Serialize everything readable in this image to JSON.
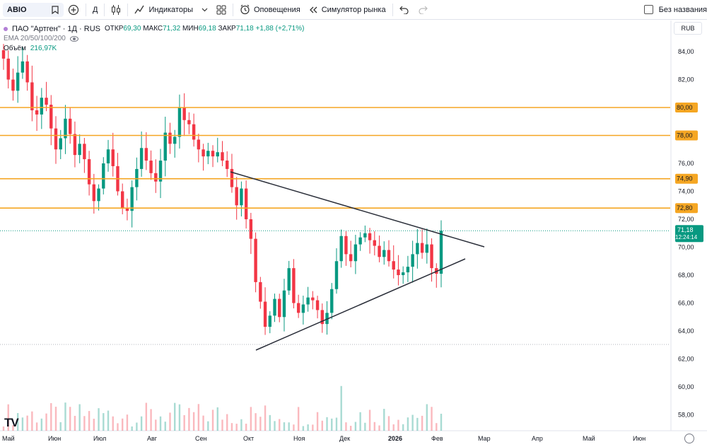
{
  "toolbar": {
    "symbol": "ABIO",
    "interval": "Д",
    "indicators": "Индикаторы",
    "alerts": "Оповещения",
    "replay": "Симулятор рынка",
    "layout_name": "Без названия"
  },
  "legend": {
    "title": "ПАО \"Артген\" · 1Д · RUS",
    "open_label": "ОТКР",
    "open": "69,30",
    "high_label": "МАКС",
    "high": "71,32",
    "low_label": "МИН",
    "low": "69,18",
    "close_label": "ЗАКР",
    "close": "71,18",
    "change": "+1,88 (+2,71%)",
    "ema": "EMA 20/50/100/200",
    "volume_label": "Объём",
    "volume": "216,97K"
  },
  "price_scale": {
    "currency": "RUB",
    "ticks": [
      "84,00",
      "82,00",
      "80,00",
      "78,00",
      "76,00",
      "74,00",
      "72,00",
      "70,00",
      "68,00",
      "66,00",
      "64,00",
      "62,00",
      "60,00",
      "58,00"
    ],
    "last_price": "71,18",
    "countdown": "12:24:14",
    "level_labels": [
      "80,00",
      "78,00",
      "74,90",
      "72,80"
    ]
  },
  "time_axis": [
    "Май",
    "Июн",
    "Июл",
    "Авг",
    "Сен",
    "Окт",
    "Ноя",
    "Дек",
    "2026",
    "Фев",
    "Мар",
    "Апр",
    "Май",
    "Июн"
  ],
  "colors": {
    "up": "#089981",
    "down": "#f23645",
    "level": "#f5a623",
    "trend": "#2a2e39"
  },
  "icons": [
    "star-icon",
    "add-symbol-icon",
    "candle-type-icon",
    "indicators-icon",
    "layout-icon",
    "alarm-clock-icon",
    "replay-icon",
    "undo-icon",
    "redo-icon",
    "settings-icon",
    "tradingview-logo"
  ],
  "chart_data": {
    "type": "candlestick",
    "price_levels": [
      80.0,
      78.0,
      74.9,
      72.8
    ],
    "trendlines": [
      {
        "from": [
          "Сен",
          75.2
        ],
        "to": [
          "Мар",
          70.0
        ]
      },
      {
        "from": [
          "Окт",
          62.4
        ],
        "to": [
          "Мар",
          67.6
        ]
      }
    ],
    "ylim": [
      56.3,
      85.5
    ],
    "last_close": 71.18,
    "closes": [
      83.5,
      82.0,
      81.2,
      82.5,
      83.3,
      81.8,
      79.8,
      79.5,
      80.7,
      80.2,
      78.5,
      77.0,
      77.8,
      79.2,
      78.1,
      76.6,
      77.4,
      76.3,
      74.5,
      73.3,
      74.2,
      76.0,
      77.0,
      75.8,
      74.0,
      72.8,
      72.6,
      74.3,
      75.6,
      77.1,
      76.2,
      75.3,
      74.7,
      76.2,
      78.2,
      77.4,
      77.9,
      80.0,
      79.1,
      78.8,
      77.7,
      77.0,
      76.5,
      76.9,
      76.5,
      76.8,
      76.2,
      75.6,
      74.3,
      73.0,
      74.2,
      72.0,
      70.6,
      67.5,
      66.1,
      64.3,
      65.1,
      66.3,
      65.0,
      66.9,
      68.5,
      66.0,
      65.3,
      65.9,
      66.4,
      66.2,
      65.5,
      64.5,
      65.3,
      67.0,
      69.0,
      70.8,
      69.5,
      69.0,
      70.2,
      70.7,
      71.0,
      70.5,
      70.1,
      69.3,
      69.8,
      69.0,
      68.4,
      68.0,
      68.2,
      68.6,
      69.5,
      70.3,
      69.6,
      70.2,
      68.5,
      68.1,
      71.18
    ]
  }
}
